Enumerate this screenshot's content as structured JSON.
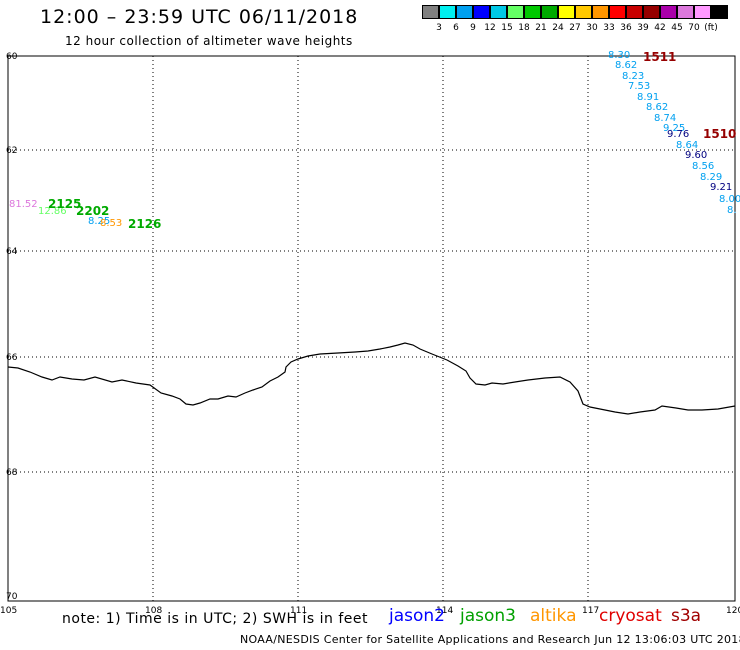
{
  "header": {
    "title": "12:00 – 23:59 UTC 06/11/2018",
    "subtitle": "12 hour collection of altimeter wave heights"
  },
  "legend": {
    "colors": [
      "#808080",
      "#00f0f0",
      "#00a0f0",
      "#0000ff",
      "#00c8e6",
      "#64ff64",
      "#00c800",
      "#00aa00",
      "#ffff00",
      "#ffc800",
      "#ff9600",
      "#ff0000",
      "#c80000",
      "#960000",
      "#aa00aa",
      "#dc78dc",
      "#ff99ff",
      "#000000"
    ],
    "levels": [
      "3",
      "6",
      "9",
      "12",
      "15",
      "18",
      "21",
      "24",
      "27",
      "30",
      "33",
      "36",
      "39",
      "42",
      "45",
      "70",
      "(ft)"
    ]
  },
  "map": {
    "lat_labels": [
      "60",
      "62",
      "64",
      "66",
      "68",
      "70"
    ],
    "lon_labels": [
      "105",
      "108",
      "111",
      "114",
      "117",
      "120"
    ]
  },
  "measurements": [
    {
      "text": "81.52",
      "color": "#dc78dc"
    },
    {
      "text": "12.86",
      "color": "#64ff64"
    },
    {
      "text": "8.25",
      "color": "#00a0f0"
    },
    {
      "text": "8.53",
      "color": "#ff9600"
    },
    {
      "text": "2125",
      "color": "#00aa00"
    },
    {
      "text": "2202",
      "color": "#00aa00"
    },
    {
      "text": "2126",
      "color": "#00aa00"
    },
    {
      "text": "8.30",
      "color": "#00a0f0"
    },
    {
      "text": "1511",
      "color": "#960000"
    },
    {
      "text": "8.62",
      "color": "#00a0f0"
    },
    {
      "text": "8.23",
      "color": "#00a0f0"
    },
    {
      "text": "7.53",
      "color": "#00a0f0"
    },
    {
      "text": "8.91",
      "color": "#00a0f0"
    },
    {
      "text": "8.62",
      "color": "#00a0f0"
    },
    {
      "text": "8.74",
      "color": "#00a0f0"
    },
    {
      "text": "9.25",
      "color": "#00a0f0"
    },
    {
      "text": "9.76",
      "color": "#000080"
    },
    {
      "text": "1510",
      "color": "#960000"
    },
    {
      "text": "8.64",
      "color": "#00a0f0"
    },
    {
      "text": "9.60",
      "color": "#000080"
    },
    {
      "text": "8.56",
      "color": "#00a0f0"
    },
    {
      "text": "8.29",
      "color": "#00a0f0"
    },
    {
      "text": "9.21",
      "color": "#000080"
    },
    {
      "text": "8.00",
      "color": "#00a0f0"
    },
    {
      "text": "8.",
      "color": "#00a0f0"
    }
  ],
  "footer": {
    "note": "note: 1) Time is in UTC; 2) SWH is in feet",
    "satellites": [
      {
        "name": "jason2",
        "color": "#0000ff"
      },
      {
        "name": "jason3",
        "color": "#00a000"
      },
      {
        "name": "altika",
        "color": "#ff9600"
      },
      {
        "name": "cryosat",
        "color": "#e00000"
      },
      {
        "name": "s3a",
        "color": "#a00000"
      }
    ],
    "credit": "NOAA/NESDIS Center for Satellite Applications and Research    Jun 12 13:06:03 UTC 2018"
  }
}
